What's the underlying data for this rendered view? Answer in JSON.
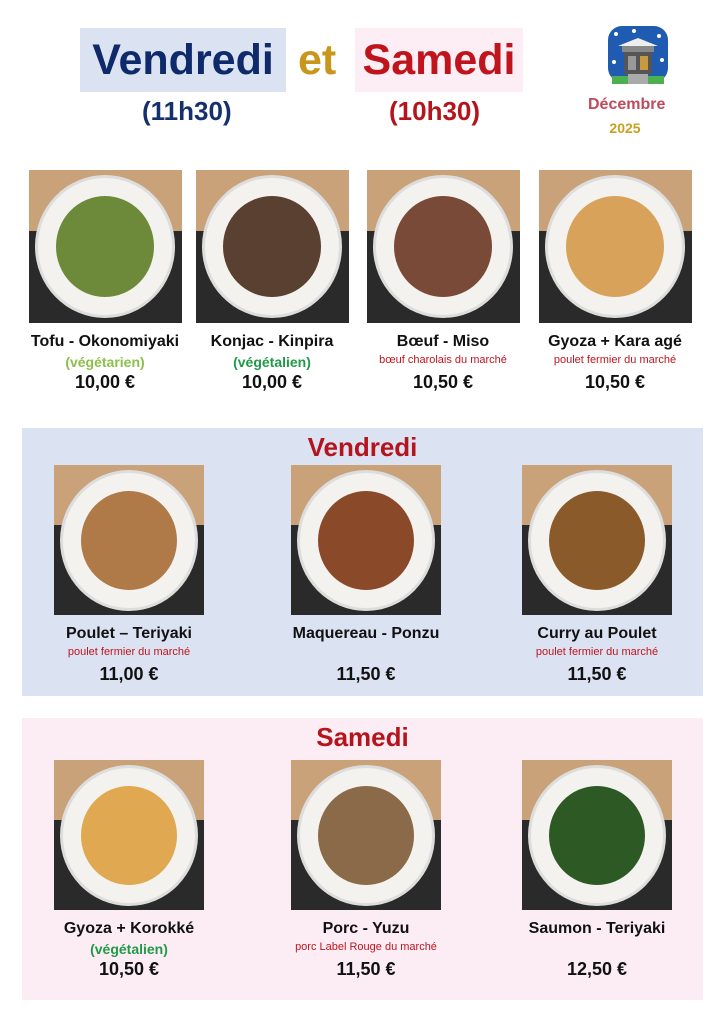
{
  "header": {
    "title_day1": "Vendredi",
    "title_connector": "et",
    "title_day2": "Samedi",
    "time_day1": "(11h30)",
    "time_day2": "(10h30)",
    "month": "Décembre",
    "year": "2025",
    "icon": "snowy-shrine-icon"
  },
  "colors": {
    "vendredi_bg": "#dbe3f2",
    "samedi_bg": "#fcedf5",
    "title_red": "#b5141c",
    "title_blue": "#0e2a6a"
  },
  "common": {
    "items": [
      {
        "name": "Tofu - Okonomiyaki",
        "note": "(végétarien)",
        "note_type": "veg-light",
        "price": "10,00 €",
        "food": "#6c8a3a"
      },
      {
        "name": "Konjac - Kinpira",
        "note": "(végétalien)",
        "note_type": "veg",
        "price": "10,00 €",
        "food": "#5a4030"
      },
      {
        "name": "Bœuf - Miso",
        "note": "bœuf charolais du marché",
        "note_type": "origin",
        "price": "10,50 €",
        "food": "#7a4a38"
      },
      {
        "name": "Gyoza + Kara agé",
        "note": "poulet fermier du marché",
        "note_type": "origin",
        "price": "10,50 €",
        "food": "#d9a25a"
      }
    ]
  },
  "vendredi": {
    "title": "Vendredi",
    "items": [
      {
        "name": "Poulet – Teriyaki",
        "note": "poulet fermier du marché",
        "note_type": "origin",
        "price": "11,00 €",
        "food": "#b07a48"
      },
      {
        "name": "Maquereau - Ponzu",
        "note": "",
        "note_type": "",
        "price": "11,50 €",
        "food": "#8a4a2a"
      },
      {
        "name": "Curry au Poulet",
        "note": "poulet fermier du marché",
        "note_type": "origin",
        "price": "11,50 €",
        "food": "#8a5a2a"
      }
    ]
  },
  "samedi": {
    "title": "Samedi",
    "items": [
      {
        "name": "Gyoza + Korokké",
        "note": "(végétalien)",
        "note_type": "veg",
        "price": "10,50 €",
        "food": "#e0a850"
      },
      {
        "name": "Porc - Yuzu",
        "note": "porc Label Rouge du marché",
        "note_type": "origin",
        "price": "11,50 €",
        "food": "#8a6a48"
      },
      {
        "name": "Saumon - Teriyaki",
        "note": "",
        "note_type": "",
        "price": "12,50 €",
        "food": "#2d5a24"
      }
    ]
  }
}
